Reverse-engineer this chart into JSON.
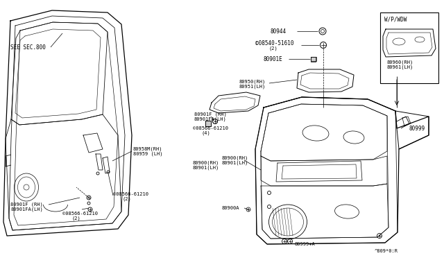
{
  "bg_color": "#ffffff",
  "line_color": "#000000",
  "fig_code": "^809*0:R",
  "labels": {
    "see_sec_800": "SEE SEC.800",
    "80958M_RH": "80958M(RH)",
    "80959_LH": "80959 (LH)",
    "80901F_RH_1": "80901F (RH)",
    "80901FA_LH_1": "80901FA(LH)",
    "08566_61210_1": "©08566-61210",
    "2_1": "(2)",
    "08566_61210_2": "©08566-61210",
    "2_2": "(2)",
    "80944": "80944",
    "08540_51610": "©08540-51610",
    "2_3": "(2)",
    "80901E": "80901E",
    "80950_RH": "80950(RH)",
    "80951_LH": "80951(LH)",
    "80901F_RH_2": "80901F (RH)",
    "80901FA_LH_2": "80901FA(LH)",
    "08566_61210_3": "©08566-61210",
    "4": "(4)",
    "80900_RH": "80900(RH)",
    "80901_LH": "80901(LH)",
    "80900A": "80900A",
    "80999": "80999",
    "80999_A": "80999+A",
    "wp_wdw": "W/P/WDW",
    "80960_RH": "80960(RH)",
    "80961_LH": "80961(LH)"
  }
}
